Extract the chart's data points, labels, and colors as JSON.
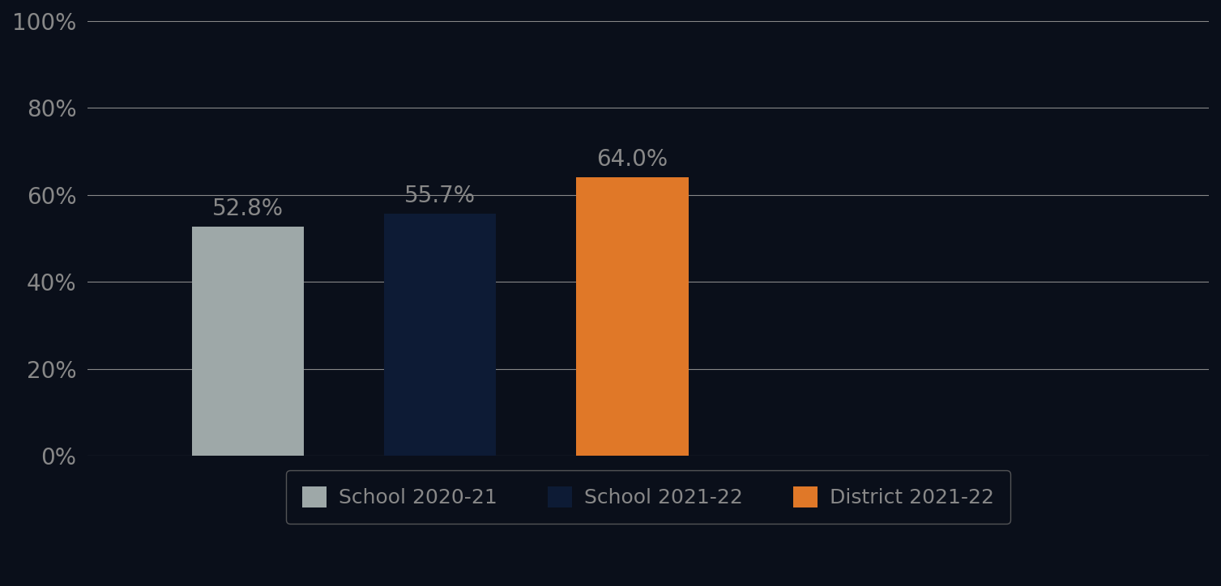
{
  "categories": [
    "School 2020-21",
    "School 2021-22",
    "District 2021-22"
  ],
  "values": [
    52.8,
    55.7,
    64.0
  ],
  "bar_colors": [
    "#9ea8a8",
    "#0d1b35",
    "#e07828"
  ],
  "ylim": [
    0,
    100
  ],
  "yticks": [
    0,
    20,
    40,
    60,
    80,
    100
  ],
  "ytick_labels": [
    "0%",
    "20%",
    "40%",
    "60%",
    "80%",
    "100%"
  ],
  "background_color": "#0a0f1a",
  "plot_bg_color": "#0a0f1a",
  "grid_color": "#888888",
  "tick_label_color": "#888888",
  "bar_label_color": "#888888",
  "legend_bg": "#0a0f1a",
  "legend_edge": "#666666",
  "legend_text_color": "#888888",
  "bar_width": 0.35,
  "bar_positions": [
    0.5,
    1.1,
    1.7
  ],
  "xlim": [
    0.0,
    3.5
  ],
  "figsize": [
    15.07,
    7.24
  ],
  "dpi": 100
}
